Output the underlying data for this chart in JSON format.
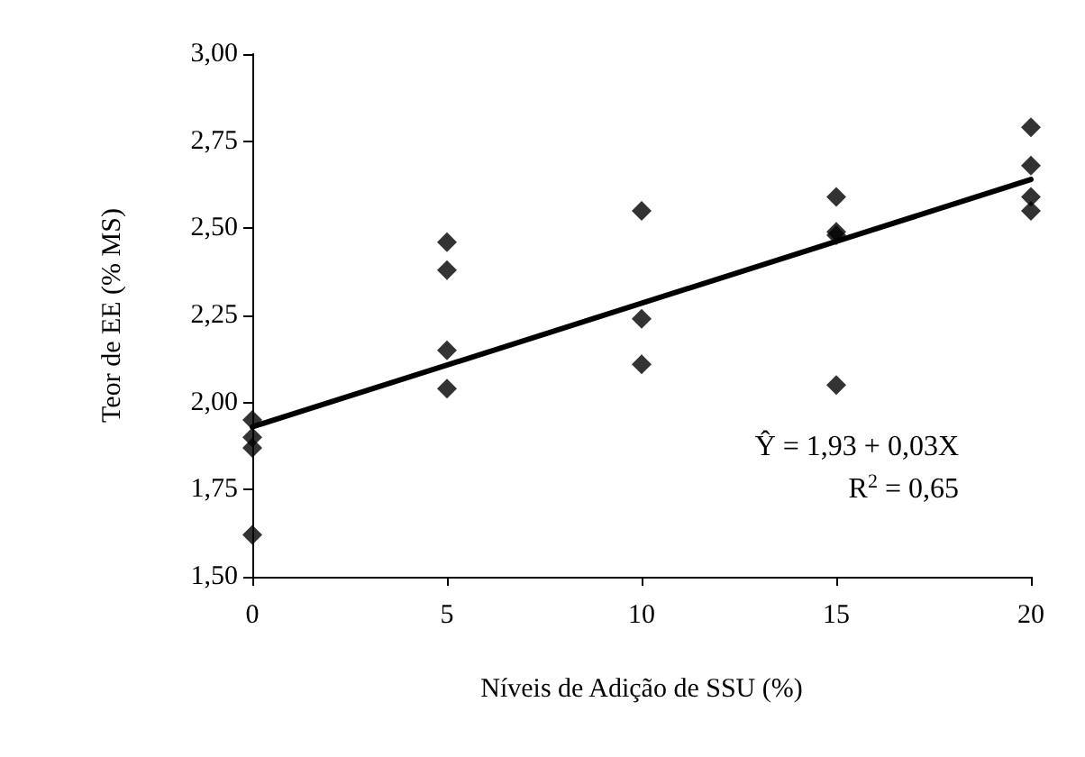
{
  "chart_data": {
    "type": "scatter",
    "xlabel": "Níveis de Adição de SSU (%)",
    "ylabel": "Teor de EE (% MS)",
    "xlim": [
      0,
      20
    ],
    "xticks": [
      0,
      5,
      10,
      15,
      20
    ],
    "ylim": [
      1.5,
      3.0
    ],
    "yticks": [
      {
        "value": 1.5,
        "label": "1,50"
      },
      {
        "value": 1.75,
        "label": "1,75"
      },
      {
        "value": 2.0,
        "label": "2,00"
      },
      {
        "value": 2.25,
        "label": "2,25"
      },
      {
        "value": 2.5,
        "label": "2,50"
      },
      {
        "value": 2.75,
        "label": "2,75"
      },
      {
        "value": 3.0,
        "label": "3,00"
      }
    ],
    "grid": false,
    "marker": "diamond",
    "series": [
      {
        "type": "scatter",
        "color": "#000000",
        "x": [
          0,
          0,
          0,
          0,
          5,
          5,
          5,
          5,
          10,
          10,
          10,
          15,
          15,
          15,
          15,
          20,
          20,
          20,
          20
        ],
        "values": [
          1.95,
          1.9,
          1.87,
          1.62,
          2.46,
          2.38,
          2.15,
          2.04,
          2.55,
          2.24,
          2.11,
          2.59,
          2.49,
          2.48,
          2.05,
          2.79,
          2.68,
          2.59,
          2.55
        ]
      },
      {
        "type": "line",
        "color": "#000000",
        "marker": "none",
        "line_style": "solid",
        "x": [
          0,
          20
        ],
        "values": [
          1.93,
          2.64
        ]
      }
    ],
    "annotations": [
      "Ŷ = 1,93 + 0,03X",
      "R$^{2}$ = 0,65"
    ]
  }
}
